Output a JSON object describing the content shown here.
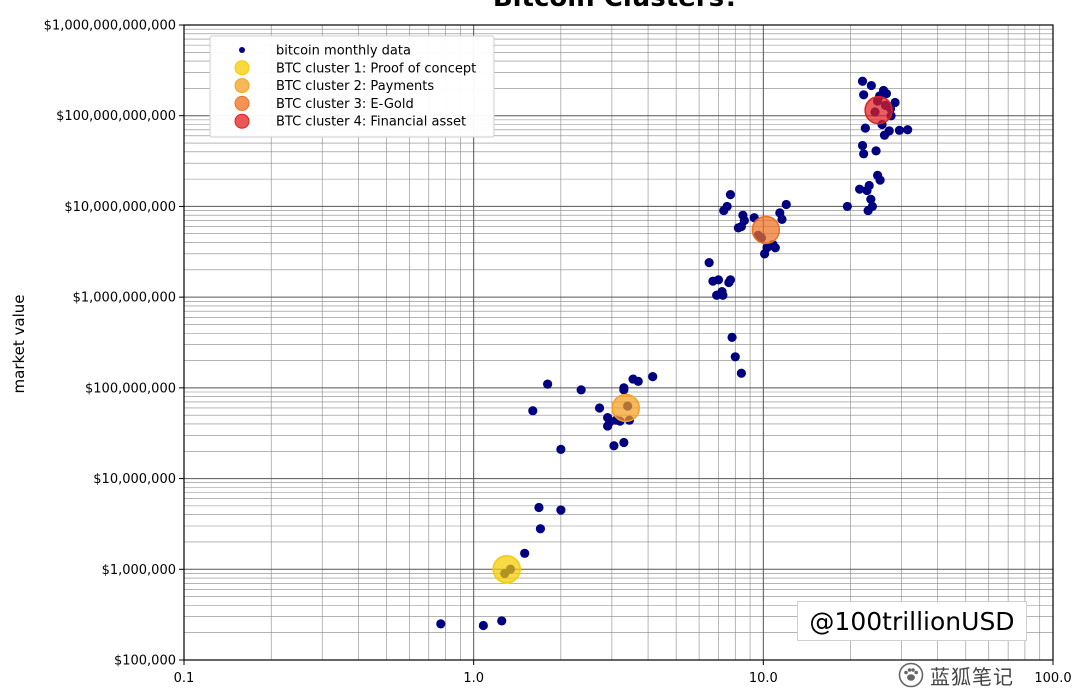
{
  "chart_data": {
    "type": "scatter",
    "title": "Bitcoin Clusters?",
    "xlabel": "",
    "ylabel": "market value",
    "xscale": "log",
    "yscale": "log",
    "xlim": [
      0.1,
      100.0
    ],
    "ylim": [
      100000,
      1000000000000
    ],
    "grid": true,
    "legend_position": "upper-left",
    "x_ticks": [
      {
        "value": 0.1,
        "label": "0.1"
      },
      {
        "value": 1.0,
        "label": "1.0"
      },
      {
        "value": 10.0,
        "label": "10.0"
      },
      {
        "value": 100.0,
        "label": "100.0"
      }
    ],
    "y_ticks": [
      {
        "value": 100000,
        "label": "$100,000"
      },
      {
        "value": 1000000,
        "label": "$1,000,000"
      },
      {
        "value": 10000000,
        "label": "$10,000,000"
      },
      {
        "value": 100000000,
        "label": "$100,000,000"
      },
      {
        "value": 1000000000,
        "label": "$1,000,000,000"
      },
      {
        "value": 10000000000,
        "label": "$10,000,000,000"
      },
      {
        "value": 100000000000,
        "label": "$100,000,000,000"
      },
      {
        "value": 1000000000000,
        "label": "$1,000,000,000,000"
      }
    ],
    "series": [
      {
        "name": "bitcoin monthly data",
        "color": "#000080",
        "points": [
          [
            0.77,
            250000
          ],
          [
            1.08,
            240000
          ],
          [
            1.25,
            270000
          ],
          [
            1.28,
            900000
          ],
          [
            1.34,
            1000000
          ],
          [
            1.5,
            1500000
          ],
          [
            1.7,
            2800000
          ],
          [
            1.68,
            4800000
          ],
          [
            2.0,
            4500000
          ],
          [
            2.0,
            21000000
          ],
          [
            1.6,
            56000000
          ],
          [
            1.8,
            110000000
          ],
          [
            2.35,
            95000000
          ],
          [
            2.72,
            60000000
          ],
          [
            2.9,
            38000000
          ],
          [
            2.95,
            42000000
          ],
          [
            2.9,
            47000000
          ],
          [
            3.1,
            44000000
          ],
          [
            3.05,
            23000000
          ],
          [
            3.3,
            25000000
          ],
          [
            3.3,
            95000000
          ],
          [
            3.3,
            100000000
          ],
          [
            3.45,
            44000000
          ],
          [
            3.4,
            63000000
          ],
          [
            3.55,
            125000000
          ],
          [
            3.7,
            118000000
          ],
          [
            3.2,
            43000000
          ],
          [
            4.15,
            133000000
          ],
          [
            6.5,
            2400000000
          ],
          [
            6.7,
            1500000000
          ],
          [
            6.9,
            1050000000
          ],
          [
            7.0,
            1550000000
          ],
          [
            7.2,
            1150000000
          ],
          [
            7.25,
            1050000000
          ],
          [
            7.6,
            1450000000
          ],
          [
            7.7,
            1550000000
          ],
          [
            7.8,
            360000000
          ],
          [
            8.0,
            220000000
          ],
          [
            8.4,
            145000000
          ],
          [
            7.3,
            9000000000
          ],
          [
            7.5,
            10000000000
          ],
          [
            7.7,
            13500000000
          ],
          [
            8.2,
            5800000000
          ],
          [
            8.4,
            6000000000
          ],
          [
            8.5,
            8000000000
          ],
          [
            8.6,
            7000000000
          ],
          [
            9.3,
            7500000000
          ],
          [
            9.6,
            4800000000
          ],
          [
            9.85,
            4500000000
          ],
          [
            10.1,
            3000000000
          ],
          [
            10.3,
            3500000000
          ],
          [
            10.8,
            3800000000
          ],
          [
            11.0,
            3500000000
          ],
          [
            11.4,
            8500000000
          ],
          [
            11.6,
            7200000000
          ],
          [
            12.0,
            10500000000
          ],
          [
            19.5,
            10000000000
          ],
          [
            21.5,
            15500000000
          ],
          [
            22.0,
            47000000000
          ],
          [
            22.2,
            38000000000
          ],
          [
            22.5,
            73000000000
          ],
          [
            22.8,
            15000000000
          ],
          [
            23.0,
            9000000000
          ],
          [
            23.2,
            17000000000
          ],
          [
            23.5,
            12000000000
          ],
          [
            23.8,
            10000000000
          ],
          [
            24.5,
            41000000000
          ],
          [
            24.8,
            22000000000
          ],
          [
            25.3,
            19500000000
          ],
          [
            25.7,
            80000000000
          ],
          [
            26.2,
            61000000000
          ],
          [
            26.0,
            190000000000
          ],
          [
            26.6,
            175000000000
          ],
          [
            27.2,
            68000000000
          ],
          [
            27.6,
            100000000000
          ],
          [
            28.5,
            140000000000
          ],
          [
            29.5,
            69000000000
          ],
          [
            31.5,
            70000000000
          ],
          [
            22.0,
            240000000000
          ],
          [
            22.2,
            170000000000
          ],
          [
            23.6,
            215000000000
          ],
          [
            24.3,
            110000000000
          ],
          [
            24.8,
            145000000000
          ],
          [
            25.2,
            165000000000
          ],
          [
            26.4,
            130000000000
          ],
          [
            27.5,
            120000000000
          ]
        ]
      },
      {
        "name": "BTC cluster 1: Proof of concept",
        "color": "#f5cc00",
        "points": [
          [
            1.3,
            1000000
          ]
        ]
      },
      {
        "name": "BTC cluster 2: Payments",
        "color": "#f5a020",
        "points": [
          [
            3.35,
            60000000
          ]
        ]
      },
      {
        "name": "BTC cluster 3: E-Gold",
        "color": "#ee7020",
        "points": [
          [
            10.2,
            5500000000
          ]
        ]
      },
      {
        "name": "BTC cluster 4: Financial asset",
        "color": "#e02020",
        "points": [
          [
            25.0,
            115000000000
          ]
        ]
      }
    ]
  },
  "watermark": "@100trillionUSD",
  "stamp": "蓝狐笔记"
}
